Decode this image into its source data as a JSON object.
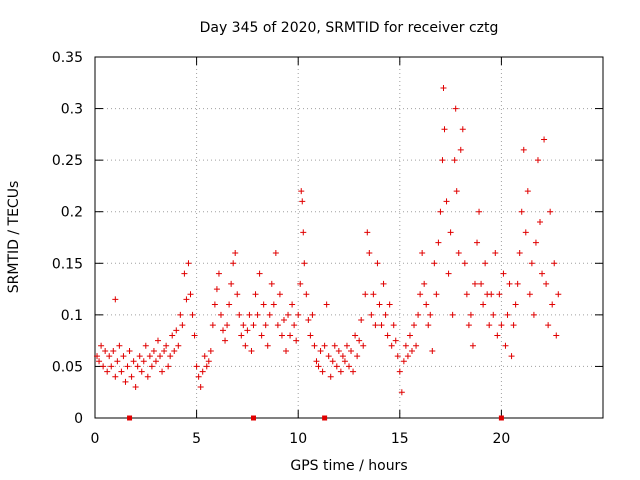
{
  "chart_data": {
    "type": "scatter",
    "title": "Day 345 of 2020, SRMTID for receiver cztg",
    "xlabel": "GPS time / hours",
    "ylabel": "SRMTID / TECUs",
    "xlim": [
      0,
      25
    ],
    "ylim": [
      0,
      0.35
    ],
    "xticks": [
      0,
      5,
      10,
      15,
      20
    ],
    "xtick_labels": [
      "0",
      "5",
      "10",
      "15",
      "20"
    ],
    "yticks": [
      0,
      0.05,
      0.1,
      0.15,
      0.2,
      0.25,
      0.3,
      0.35
    ],
    "ytick_labels": [
      "0",
      "0.05",
      "0.1",
      "0.15",
      "0.2",
      "0.25",
      "0.3",
      "0.35"
    ],
    "grid": true,
    "marker": "plus",
    "color": "#e00000",
    "series": [
      {
        "name": "SRMTID",
        "points": [
          [
            0.1,
            0.06
          ],
          [
            0.2,
            0.055
          ],
          [
            0.3,
            0.07
          ],
          [
            0.4,
            0.05
          ],
          [
            0.5,
            0.065
          ],
          [
            0.6,
            0.045
          ],
          [
            0.7,
            0.06
          ],
          [
            0.8,
            0.05
          ],
          [
            0.9,
            0.065
          ],
          [
            1.0,
            0.04
          ],
          [
            1.1,
            0.055
          ],
          [
            1.0,
            0.115
          ],
          [
            1.2,
            0.07
          ],
          [
            1.3,
            0.045
          ],
          [
            1.4,
            0.06
          ],
          [
            1.5,
            0.035
          ],
          [
            1.6,
            0.05
          ],
          [
            1.7,
            0.065
          ],
          [
            1.8,
            0.04
          ],
          [
            1.9,
            0.055
          ],
          [
            2.0,
            0.03
          ],
          [
            2.1,
            0.05
          ],
          [
            2.2,
            0.06
          ],
          [
            2.3,
            0.045
          ],
          [
            2.4,
            0.055
          ],
          [
            2.5,
            0.07
          ],
          [
            2.6,
            0.04
          ],
          [
            2.7,
            0.06
          ],
          [
            2.8,
            0.05
          ],
          [
            2.9,
            0.065
          ],
          [
            3.0,
            0.055
          ],
          [
            3.1,
            0.075
          ],
          [
            3.2,
            0.06
          ],
          [
            3.3,
            0.045
          ],
          [
            3.4,
            0.065
          ],
          [
            3.5,
            0.07
          ],
          [
            3.6,
            0.05
          ],
          [
            3.7,
            0.06
          ],
          [
            3.8,
            0.08
          ],
          [
            3.9,
            0.065
          ],
          [
            4.0,
            0.085
          ],
          [
            4.1,
            0.07
          ],
          [
            4.2,
            0.1
          ],
          [
            4.3,
            0.09
          ],
          [
            4.4,
            0.14
          ],
          [
            4.5,
            0.115
          ],
          [
            4.6,
            0.15
          ],
          [
            4.7,
            0.12
          ],
          [
            4.8,
            0.1
          ],
          [
            4.9,
            0.08
          ],
          [
            5.0,
            0.05
          ],
          [
            5.1,
            0.04
          ],
          [
            5.2,
            0.03
          ],
          [
            5.3,
            0.045
          ],
          [
            5.4,
            0.06
          ],
          [
            5.5,
            0.05
          ],
          [
            5.6,
            0.055
          ],
          [
            5.7,
            0.065
          ],
          [
            5.8,
            0.09
          ],
          [
            5.9,
            0.11
          ],
          [
            6.0,
            0.125
          ],
          [
            6.1,
            0.14
          ],
          [
            6.2,
            0.1
          ],
          [
            6.3,
            0.085
          ],
          [
            6.4,
            0.075
          ],
          [
            6.5,
            0.09
          ],
          [
            6.6,
            0.11
          ],
          [
            6.7,
            0.13
          ],
          [
            6.8,
            0.15
          ],
          [
            6.9,
            0.16
          ],
          [
            7.0,
            0.12
          ],
          [
            7.1,
            0.1
          ],
          [
            7.2,
            0.08
          ],
          [
            7.3,
            0.09
          ],
          [
            7.4,
            0.07
          ],
          [
            7.5,
            0.085
          ],
          [
            7.6,
            0.1
          ],
          [
            7.7,
            0.065
          ],
          [
            7.8,
            0.09
          ],
          [
            7.9,
            0.12
          ],
          [
            8.0,
            0.1
          ],
          [
            8.1,
            0.14
          ],
          [
            8.2,
            0.08
          ],
          [
            8.3,
            0.11
          ],
          [
            8.4,
            0.09
          ],
          [
            8.5,
            0.07
          ],
          [
            8.6,
            0.1
          ],
          [
            8.7,
            0.13
          ],
          [
            8.8,
            0.11
          ],
          [
            8.9,
            0.16
          ],
          [
            9.0,
            0.09
          ],
          [
            9.1,
            0.12
          ],
          [
            9.2,
            0.08
          ],
          [
            9.3,
            0.095
          ],
          [
            9.4,
            0.065
          ],
          [
            9.5,
            0.1
          ],
          [
            9.6,
            0.08
          ],
          [
            9.7,
            0.11
          ],
          [
            9.8,
            0.09
          ],
          [
            9.9,
            0.075
          ],
          [
            10.0,
            0.1
          ],
          [
            10.1,
            0.13
          ],
          [
            10.15,
            0.22
          ],
          [
            10.2,
            0.21
          ],
          [
            10.25,
            0.18
          ],
          [
            10.3,
            0.15
          ],
          [
            10.4,
            0.12
          ],
          [
            10.5,
            0.095
          ],
          [
            10.6,
            0.08
          ],
          [
            10.7,
            0.1
          ],
          [
            10.8,
            0.07
          ],
          [
            10.9,
            0.055
          ],
          [
            11.0,
            0.05
          ],
          [
            11.1,
            0.065
          ],
          [
            11.2,
            0.045
          ],
          [
            11.3,
            0.07
          ],
          [
            11.4,
            0.11
          ],
          [
            11.5,
            0.06
          ],
          [
            11.6,
            0.04
          ],
          [
            11.7,
            0.055
          ],
          [
            11.8,
            0.07
          ],
          [
            11.9,
            0.05
          ],
          [
            12.0,
            0.065
          ],
          [
            12.1,
            0.045
          ],
          [
            12.2,
            0.06
          ],
          [
            12.3,
            0.055
          ],
          [
            12.4,
            0.07
          ],
          [
            12.5,
            0.05
          ],
          [
            12.6,
            0.065
          ],
          [
            12.7,
            0.045
          ],
          [
            12.8,
            0.08
          ],
          [
            12.9,
            0.06
          ],
          [
            13.0,
            0.075
          ],
          [
            13.1,
            0.095
          ],
          [
            13.2,
            0.07
          ],
          [
            13.3,
            0.12
          ],
          [
            13.4,
            0.18
          ],
          [
            13.5,
            0.16
          ],
          [
            13.6,
            0.1
          ],
          [
            13.7,
            0.12
          ],
          [
            13.8,
            0.09
          ],
          [
            13.9,
            0.15
          ],
          [
            14.0,
            0.11
          ],
          [
            14.1,
            0.09
          ],
          [
            14.2,
            0.13
          ],
          [
            14.3,
            0.1
          ],
          [
            14.4,
            0.08
          ],
          [
            14.5,
            0.11
          ],
          [
            14.6,
            0.07
          ],
          [
            14.7,
            0.09
          ],
          [
            14.8,
            0.075
          ],
          [
            14.9,
            0.06
          ],
          [
            15.0,
            0.045
          ],
          [
            15.1,
            0.025
          ],
          [
            15.2,
            0.055
          ],
          [
            15.3,
            0.07
          ],
          [
            15.4,
            0.06
          ],
          [
            15.5,
            0.08
          ],
          [
            15.6,
            0.065
          ],
          [
            15.7,
            0.09
          ],
          [
            15.8,
            0.07
          ],
          [
            15.9,
            0.1
          ],
          [
            16.0,
            0.12
          ],
          [
            16.1,
            0.16
          ],
          [
            16.2,
            0.13
          ],
          [
            16.3,
            0.11
          ],
          [
            16.4,
            0.09
          ],
          [
            16.5,
            0.1
          ],
          [
            16.6,
            0.065
          ],
          [
            16.7,
            0.15
          ],
          [
            16.8,
            0.12
          ],
          [
            16.9,
            0.17
          ],
          [
            17.0,
            0.2
          ],
          [
            17.1,
            0.25
          ],
          [
            17.15,
            0.32
          ],
          [
            17.2,
            0.28
          ],
          [
            17.3,
            0.21
          ],
          [
            17.4,
            0.14
          ],
          [
            17.5,
            0.18
          ],
          [
            17.6,
            0.1
          ],
          [
            17.7,
            0.25
          ],
          [
            17.75,
            0.3
          ],
          [
            17.8,
            0.22
          ],
          [
            17.9,
            0.16
          ],
          [
            18.0,
            0.26
          ],
          [
            18.1,
            0.28
          ],
          [
            18.2,
            0.15
          ],
          [
            18.3,
            0.12
          ],
          [
            18.4,
            0.09
          ],
          [
            18.5,
            0.1
          ],
          [
            18.6,
            0.07
          ],
          [
            18.7,
            0.13
          ],
          [
            18.8,
            0.17
          ],
          [
            18.9,
            0.2
          ],
          [
            19.0,
            0.13
          ],
          [
            19.1,
            0.11
          ],
          [
            19.2,
            0.15
          ],
          [
            19.3,
            0.12
          ],
          [
            19.4,
            0.09
          ],
          [
            19.5,
            0.12
          ],
          [
            19.6,
            0.1
          ],
          [
            19.7,
            0.16
          ],
          [
            19.8,
            0.08
          ],
          [
            19.9,
            0.12
          ],
          [
            20.0,
            0.09
          ],
          [
            20.1,
            0.14
          ],
          [
            20.2,
            0.07
          ],
          [
            20.3,
            0.1
          ],
          [
            20.4,
            0.13
          ],
          [
            20.5,
            0.06
          ],
          [
            20.6,
            0.09
          ],
          [
            20.7,
            0.11
          ],
          [
            20.8,
            0.13
          ],
          [
            20.9,
            0.16
          ],
          [
            21.0,
            0.2
          ],
          [
            21.1,
            0.26
          ],
          [
            21.2,
            0.18
          ],
          [
            21.3,
            0.22
          ],
          [
            21.4,
            0.12
          ],
          [
            21.5,
            0.15
          ],
          [
            21.6,
            0.1
          ],
          [
            21.7,
            0.17
          ],
          [
            21.8,
            0.25
          ],
          [
            21.9,
            0.19
          ],
          [
            22.0,
            0.14
          ],
          [
            22.1,
            0.27
          ],
          [
            22.2,
            0.13
          ],
          [
            22.3,
            0.09
          ],
          [
            22.4,
            0.2
          ],
          [
            22.5,
            0.11
          ],
          [
            22.6,
            0.15
          ],
          [
            22.7,
            0.08
          ],
          [
            22.8,
            0.12
          ]
        ]
      }
    ],
    "axis_gap_markers_x": [
      1.7,
      7.8,
      11.3,
      20.0
    ]
  }
}
